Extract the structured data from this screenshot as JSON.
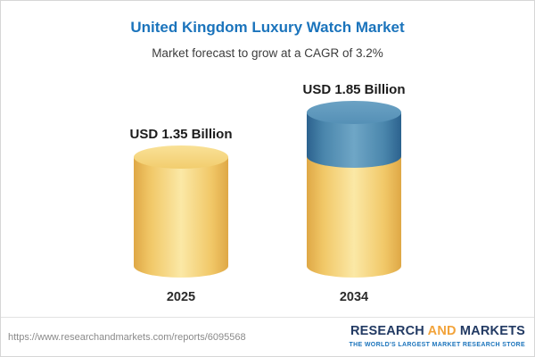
{
  "header": {
    "title": "United Kingdom Luxury Watch Market",
    "subtitle": "Market forecast to grow at a CAGR of 3.2%"
  },
  "chart_data": {
    "type": "bar",
    "variant": "3d-cylinder",
    "title": "United Kingdom Luxury Watch Market",
    "subtitle": "Market forecast to grow at a CAGR of 3.2%",
    "cagr": "3.2%",
    "unit": "USD Billion",
    "categories": [
      "2025",
      "2034"
    ],
    "values": [
      1.35,
      1.85
    ],
    "value_labels": [
      "USD 1.35 Billion",
      "USD 1.85 Billion"
    ],
    "ylim": [
      0,
      2
    ],
    "legend_position": "none",
    "grid": false,
    "colors": {
      "base_segment": "#F1C868",
      "growth_segment": "#4A86AC"
    }
  },
  "footer": {
    "url": "https://www.researchandmarkets.com/reports/6095568",
    "logo": {
      "research": "RESEARCH",
      "and": "AND",
      "markets": "MARKETS",
      "tagline": "THE WORLD'S LARGEST MARKET RESEARCH STORE"
    }
  }
}
